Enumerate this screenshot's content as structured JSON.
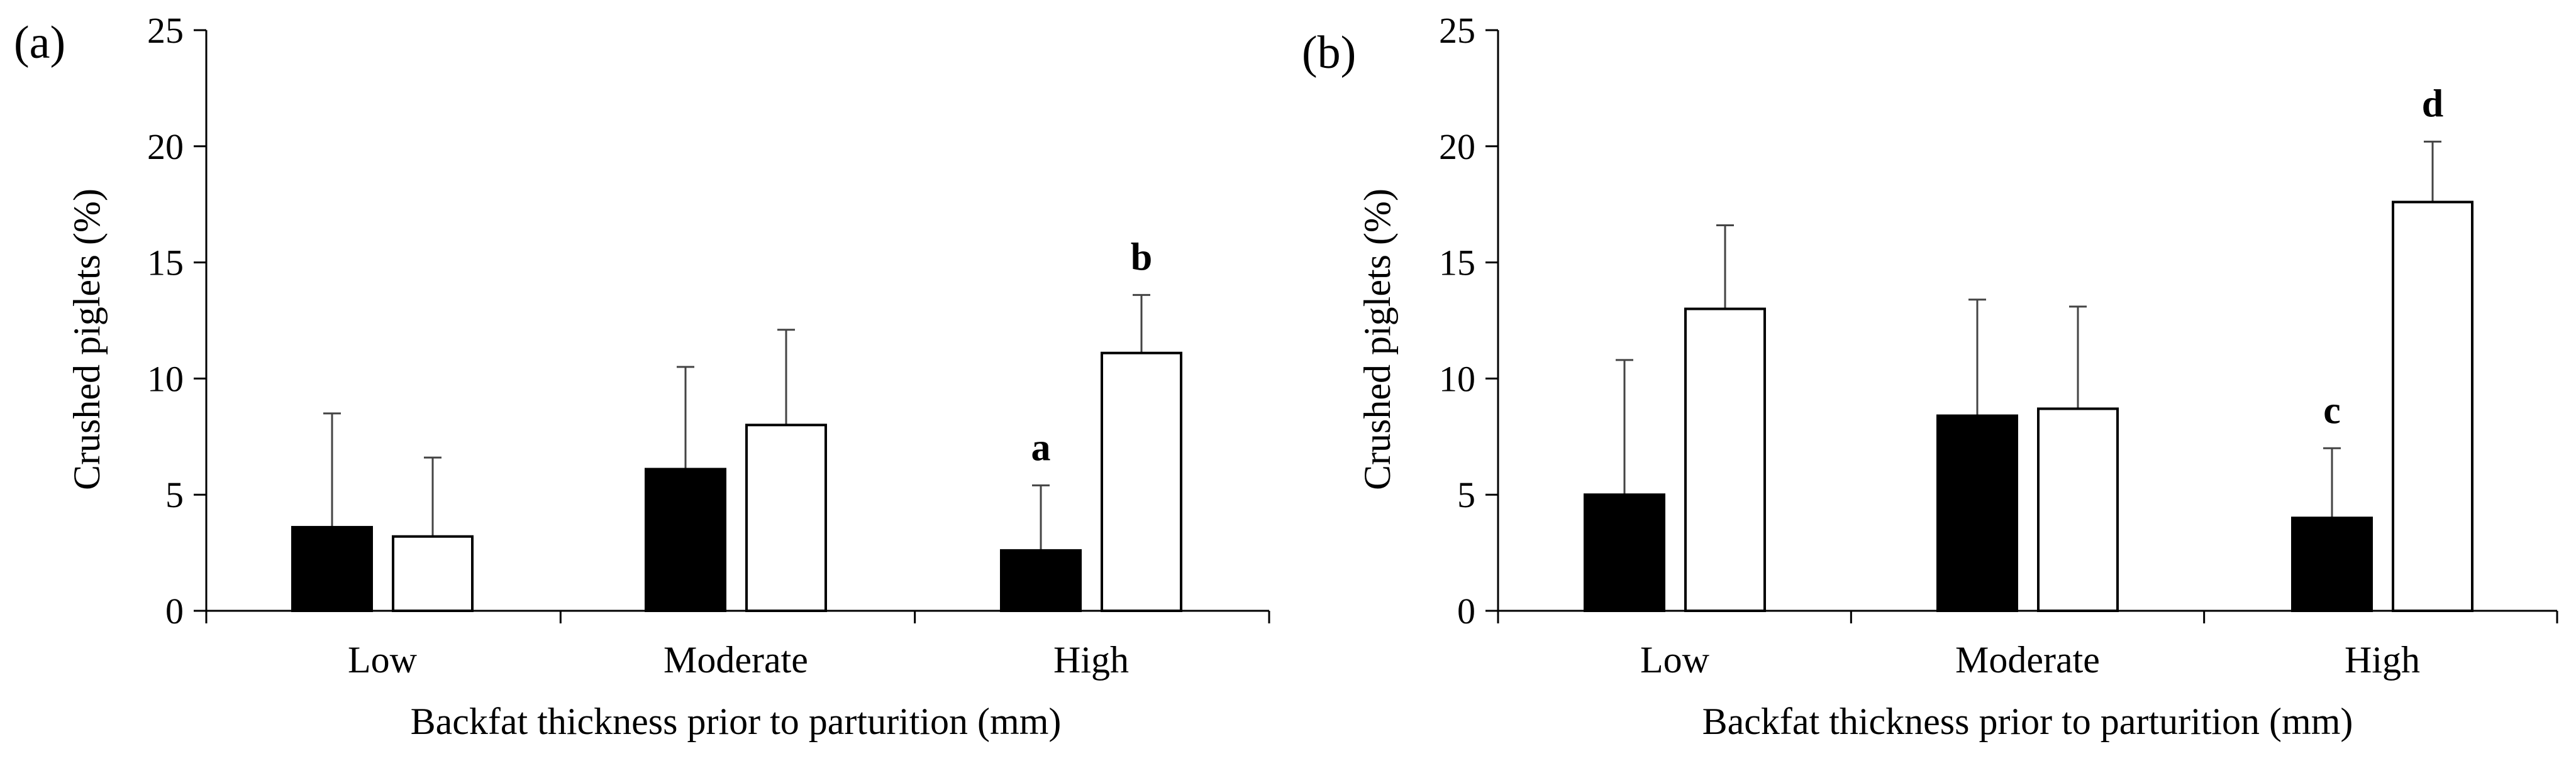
{
  "chart_data": [
    {
      "type": "bar",
      "panel_label": "(a)",
      "categories": [
        "Low",
        "Moderate",
        "High"
      ],
      "series": [
        {
          "name": "filled bars",
          "color": "#000000",
          "values": [
            3.6,
            6.1,
            2.6
          ],
          "error": [
            4.9,
            4.4,
            2.8
          ]
        },
        {
          "name": "open bars",
          "color": "#ffffff",
          "values": [
            3.2,
            8.0,
            11.1
          ],
          "error": [
            3.4,
            4.1,
            2.5
          ]
        }
      ],
      "annotations": [
        {
          "text": "a",
          "category": 2,
          "series": 0
        },
        {
          "text": "b",
          "category": 2,
          "series": 1
        }
      ],
      "xlabel": "Backfat thickness prior to parturition (mm)",
      "ylabel": "Crushed piglets (%)",
      "ylim": [
        0,
        25
      ],
      "yticks": [
        0,
        5,
        10,
        15,
        20,
        25
      ]
    },
    {
      "type": "bar",
      "panel_label": "(b)",
      "categories": [
        "Low",
        "Moderate",
        "High"
      ],
      "series": [
        {
          "name": "filled bars",
          "color": "#000000",
          "values": [
            5.0,
            8.4,
            4.0
          ],
          "error": [
            5.8,
            5.0,
            3.0
          ]
        },
        {
          "name": "open bars",
          "color": "#ffffff",
          "values": [
            13.0,
            8.7,
            17.6
          ],
          "error": [
            3.6,
            4.4,
            2.6
          ]
        }
      ],
      "annotations": [
        {
          "text": "c",
          "category": 2,
          "series": 0
        },
        {
          "text": "d",
          "category": 2,
          "series": 1
        }
      ],
      "xlabel": "Backfat thickness prior to parturition (mm)",
      "ylabel": "Crushed piglets (%)",
      "ylim": [
        0,
        25
      ],
      "yticks": [
        0,
        5,
        10,
        15,
        20,
        25
      ]
    }
  ]
}
